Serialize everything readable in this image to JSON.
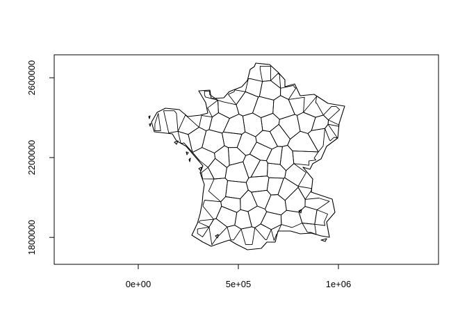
{
  "chart_data": {
    "type": "map",
    "title": "",
    "xlabel": "",
    "ylabel": "",
    "xlim": [
      -420000,
      1500000
    ],
    "ylim": [
      1665000,
      2715000
    ],
    "x_ticks": [
      {
        "value": 0,
        "label": "0e+00"
      },
      {
        "value": 500000,
        "label": "5e+05"
      },
      {
        "value": 1000000,
        "label": "1e+06"
      }
    ],
    "y_ticks": [
      {
        "value": 1800000,
        "label": "1800000"
      },
      {
        "value": 2200000,
        "label": "2200000"
      },
      {
        "value": 2600000,
        "label": "2600000"
      }
    ],
    "grid": false,
    "legend": "none",
    "line_color": "#000000"
  }
}
